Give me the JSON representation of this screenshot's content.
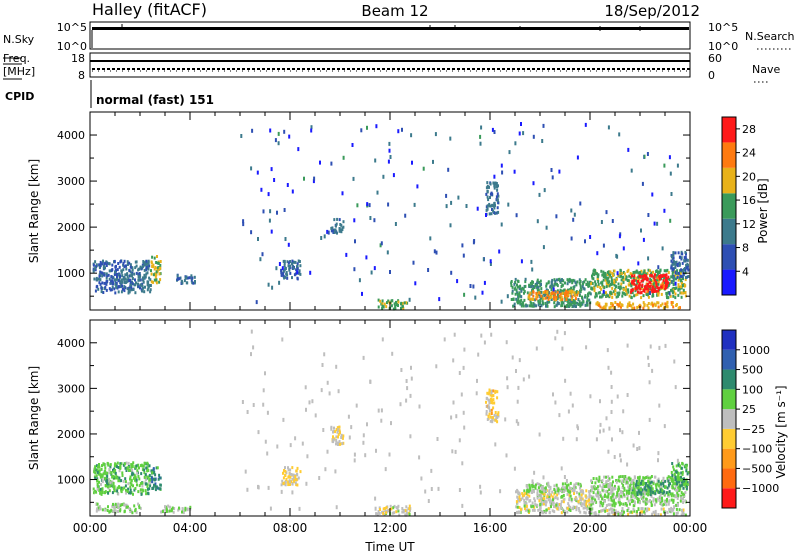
{
  "header": {
    "station": "Halley (fitACF)",
    "beam": "Beam 12",
    "date": "18/Sep/2012"
  },
  "status_panels": {
    "nsky_label": "N.Sky",
    "nsky_ticks_left": [
      "10^5",
      "10^0"
    ],
    "nsearch_label": "N.Search",
    "nsearch_ticks_right": [
      "10^5",
      "10^0"
    ],
    "freq_label": "Freq.",
    "freq_unit": "[MHz]",
    "freq_ticks": [
      "18",
      "8"
    ],
    "nave_label": "Nave",
    "nave_ticks": [
      "60",
      "0"
    ],
    "cpid_label": "CPID",
    "cpid_value": "normal (fast) 151"
  },
  "chart_data": [
    {
      "type": "heatmap",
      "title": "",
      "ylabel": "Slant Range [km]",
      "xlabel": "",
      "xlim": [
        0,
        24
      ],
      "ylim": [
        200,
        4500
      ],
      "yticks": [
        "1000",
        "2000",
        "3000",
        "4000"
      ],
      "colorbar_label": "Power [dB]",
      "colorbar_ticks": [
        "4",
        "8",
        "12",
        "16",
        "20",
        "24",
        "28"
      ],
      "colorbar_range": [
        0,
        30
      ],
      "colors": [
        "#1a1aff",
        "#2e4fb3",
        "#3c7a8c",
        "#3a9a5a",
        "#e8b21a",
        "#ff7a10",
        "#ff1a1a"
      ],
      "regions": [
        {
          "t0": 0.1,
          "t1": 1.2,
          "r0": 600,
          "r1": 1300,
          "value": 8
        },
        {
          "t0": 1.2,
          "t1": 2.4,
          "r0": 600,
          "r1": 1300,
          "value": 10
        },
        {
          "t0": 2.4,
          "t1": 2.8,
          "r0": 800,
          "r1": 1400,
          "value": 18
        },
        {
          "t0": 3.4,
          "t1": 4.2,
          "r0": 800,
          "r1": 1000,
          "value": 9
        },
        {
          "t0": 7.6,
          "t1": 8.4,
          "r0": 900,
          "r1": 1300,
          "value": 9
        },
        {
          "t0": 9.6,
          "t1": 10.1,
          "r0": 1900,
          "r1": 2200,
          "value": 10
        },
        {
          "t0": 11.5,
          "t1": 12.7,
          "r0": 250,
          "r1": 450,
          "value": 16
        },
        {
          "t0": 15.8,
          "t1": 16.3,
          "r0": 2300,
          "r1": 3000,
          "value": 10
        },
        {
          "t0": 16.8,
          "t1": 20.0,
          "r0": 300,
          "r1": 900,
          "value": 14
        },
        {
          "t0": 17.5,
          "t1": 19.5,
          "r0": 450,
          "r1": 650,
          "value": 22
        },
        {
          "t0": 20.0,
          "t1": 23.8,
          "r0": 500,
          "r1": 1100,
          "value": 16
        },
        {
          "t0": 21.6,
          "t1": 23.1,
          "r0": 600,
          "r1": 1000,
          "value": 28
        },
        {
          "t0": 20.2,
          "t1": 23.6,
          "r0": 270,
          "r1": 400,
          "value": 20
        },
        {
          "t0": 23.2,
          "t1": 23.9,
          "r0": 900,
          "r1": 1500,
          "value": 8
        }
      ]
    },
    {
      "type": "heatmap",
      "title": "",
      "ylabel": "Slant Range [km]",
      "xlabel": "Time UT",
      "xlim": [
        0,
        24
      ],
      "ylim": [
        200,
        4500
      ],
      "yticks": [
        "1000",
        "2000",
        "3000",
        "4000"
      ],
      "xticks": [
        "00:00",
        "04:00",
        "08:00",
        "12:00",
        "16:00",
        "20:00",
        "00:00"
      ],
      "xtick_values": [
        0,
        4,
        8,
        12,
        16,
        20,
        24
      ],
      "colorbar_label": "Velocity [m s⁻¹]",
      "colorbar_ticks": [
        "1000",
        "500",
        "100",
        "25",
        "−25",
        "−100",
        "−500",
        "−1000"
      ],
      "colorbar_range": [
        -1200,
        1200
      ],
      "colors": [
        "#ff1a1a",
        "#ff6a10",
        "#ff9a1a",
        "#ffcc33",
        "#bebebe",
        "#60d040",
        "#2e8a6e",
        "#3060b0",
        "#2030c0"
      ],
      "regions": [
        {
          "t0": 0.1,
          "t1": 2.4,
          "r0": 700,
          "r1": 1400,
          "value": 300
        },
        {
          "t0": 0.2,
          "t1": 2.0,
          "r0": 300,
          "r1": 500,
          "value": 120
        },
        {
          "t0": 2.4,
          "t1": 2.8,
          "r0": 800,
          "r1": 1300,
          "value": 600
        },
        {
          "t0": 2.8,
          "t1": 4.0,
          "r0": 300,
          "r1": 450,
          "value": 100
        },
        {
          "t0": 7.6,
          "t1": 8.4,
          "r0": 900,
          "r1": 1300,
          "value": -150
        },
        {
          "t0": 9.6,
          "t1": 10.1,
          "r0": 1800,
          "r1": 2200,
          "value": -150
        },
        {
          "t0": 11.4,
          "t1": 12.8,
          "r0": 250,
          "r1": 450,
          "value": -60
        },
        {
          "t0": 15.8,
          "t1": 16.3,
          "r0": 2300,
          "r1": 3000,
          "value": -200
        },
        {
          "t0": 17.0,
          "t1": 20.0,
          "r0": 300,
          "r1": 800,
          "value": 0
        },
        {
          "t0": 17.4,
          "t1": 19.6,
          "r0": 750,
          "r1": 950,
          "value": 150
        },
        {
          "t0": 20.0,
          "t1": 23.8,
          "r0": 450,
          "r1": 1100,
          "value": 150
        },
        {
          "t0": 21.5,
          "t1": 23.2,
          "r0": 700,
          "r1": 1000,
          "value": 450
        },
        {
          "t0": 20.0,
          "t1": 23.8,
          "r0": 250,
          "r1": 400,
          "value": 0
        },
        {
          "t0": 23.2,
          "t1": 23.9,
          "r0": 800,
          "r1": 1400,
          "value": 400
        }
      ]
    }
  ]
}
